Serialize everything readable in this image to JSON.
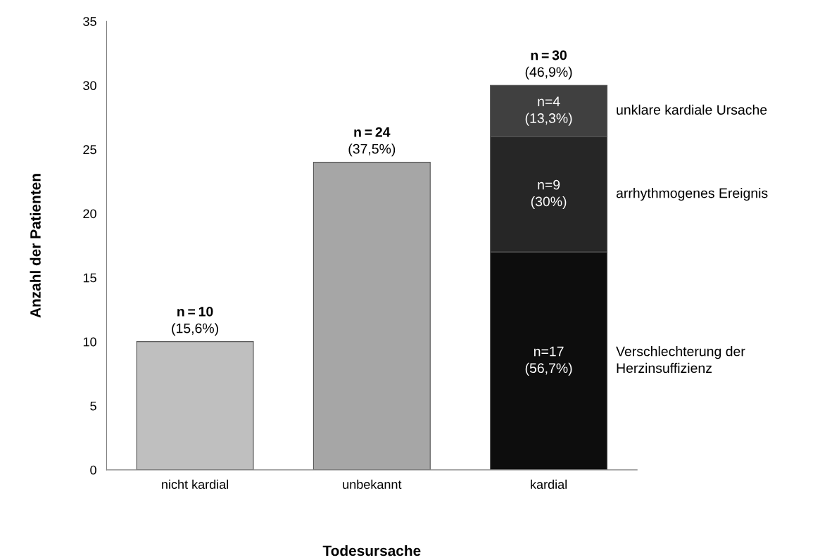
{
  "chart_data": {
    "type": "bar",
    "stacked": true,
    "xlabel": "Todesursache",
    "ylabel": "Anzahl der Patienten",
    "categories": [
      "nicht kardial",
      "unbekannt",
      "kardial"
    ],
    "series": [
      {
        "colors": [
          "#bfbfbf",
          "#a6a6a6",
          "#0d0d0d"
        ],
        "values": [
          10,
          24,
          null
        ]
      },
      {
        "name": "Verschlechterung der Herzinsuffizienz",
        "color": "#0d0d0d",
        "values": [
          null,
          null,
          17
        ],
        "value_labels": [
          null,
          null,
          "n=17\n(56,7%)"
        ]
      },
      {
        "name": "arrhythmogenes Ereignis",
        "color": "#262626",
        "values": [
          null,
          null,
          9
        ],
        "value_labels": [
          null,
          null,
          "n=9\n(30%)"
        ]
      },
      {
        "name": "unklare kardiale Ursache",
        "color": "#404040",
        "values": [
          null,
          null,
          4
        ],
        "value_labels": [
          null,
          null,
          "n=4\n(13,3%)"
        ]
      }
    ],
    "totals": [
      "n=10\n(15,6%)",
      "n=24\n(37,5%)",
      "n=30\n(46,9%)"
    ],
    "ylim": [
      0,
      35
    ],
    "yticks": [
      0,
      5,
      10,
      15,
      20,
      25,
      30,
      35
    ],
    "grid": false,
    "legend": false
  }
}
